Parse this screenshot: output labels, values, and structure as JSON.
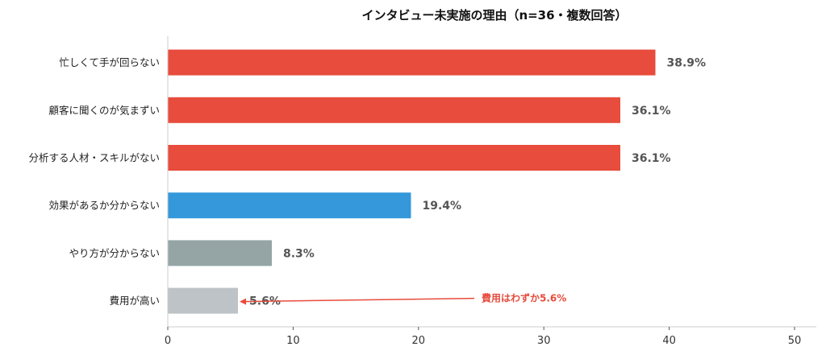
{
  "chart_data": {
    "type": "bar",
    "orientation": "horizontal",
    "title": "インタビュー未実施の理由（n=36・複数回答）",
    "categories": [
      "忙しくて手が回らない",
      "顧客に聞くのが気まずい",
      "分析する人材・スキルがない",
      "効果があるか分からない",
      "やり方が分からない",
      "費用が高い"
    ],
    "values": [
      38.9,
      36.1,
      36.1,
      19.4,
      8.3,
      5.6
    ],
    "value_labels": [
      "38.9%",
      "36.1%",
      "36.1%",
      "19.4%",
      "8.3%",
      "5.6%"
    ],
    "colors": [
      "#E74C3C",
      "#E74C3C",
      "#E74C3C",
      "#3498DB",
      "#95A5A6",
      "#BDC3C7"
    ],
    "xlim": [
      0,
      50
    ],
    "xticks": [
      "0",
      "10",
      "20",
      "30",
      "40",
      "50"
    ],
    "xlabel": "",
    "ylabel": "",
    "grid": false,
    "annotation": {
      "text": "費用はわずか5.6%",
      "target_category": "費用が高い",
      "color": "#E74C3C"
    }
  }
}
